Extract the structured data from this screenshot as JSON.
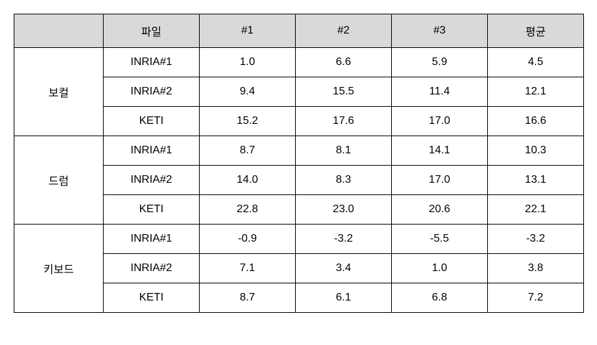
{
  "table": {
    "columns": [
      "",
      "파일",
      "#1",
      "#2",
      "#3",
      "평균"
    ],
    "header_bg": "#d9d9d9",
    "border_color": "#000000",
    "groups": [
      {
        "label": "보컬",
        "rows": [
          {
            "file": "INRIA#1",
            "v1": "1.0",
            "v2": "6.6",
            "v3": "5.9",
            "avg": "4.5"
          },
          {
            "file": "INRIA#2",
            "v1": "9.4",
            "v2": "15.5",
            "v3": "11.4",
            "avg": "12.1"
          },
          {
            "file": "KETI",
            "v1": "15.2",
            "v2": "17.6",
            "v3": "17.0",
            "avg": "16.6"
          }
        ]
      },
      {
        "label": "드럼",
        "rows": [
          {
            "file": "INRIA#1",
            "v1": "8.7",
            "v2": "8.1",
            "v3": "14.1",
            "avg": "10.3"
          },
          {
            "file": "INRIA#2",
            "v1": "14.0",
            "v2": "8.3",
            "v3": "17.0",
            "avg": "13.1"
          },
          {
            "file": "KETI",
            "v1": "22.8",
            "v2": "23.0",
            "v3": "20.6",
            "avg": "22.1"
          }
        ]
      },
      {
        "label": "키보드",
        "rows": [
          {
            "file": "INRIA#1",
            "v1": "-0.9",
            "v2": "-3.2",
            "v3": "-5.5",
            "avg": "-3.2"
          },
          {
            "file": "INRIA#2",
            "v1": "7.1",
            "v2": "3.4",
            "v3": "1.0",
            "avg": "3.8"
          },
          {
            "file": "KETI",
            "v1": "8.7",
            "v2": "6.1",
            "v3": "6.8",
            "avg": "7.2"
          }
        ]
      }
    ]
  }
}
